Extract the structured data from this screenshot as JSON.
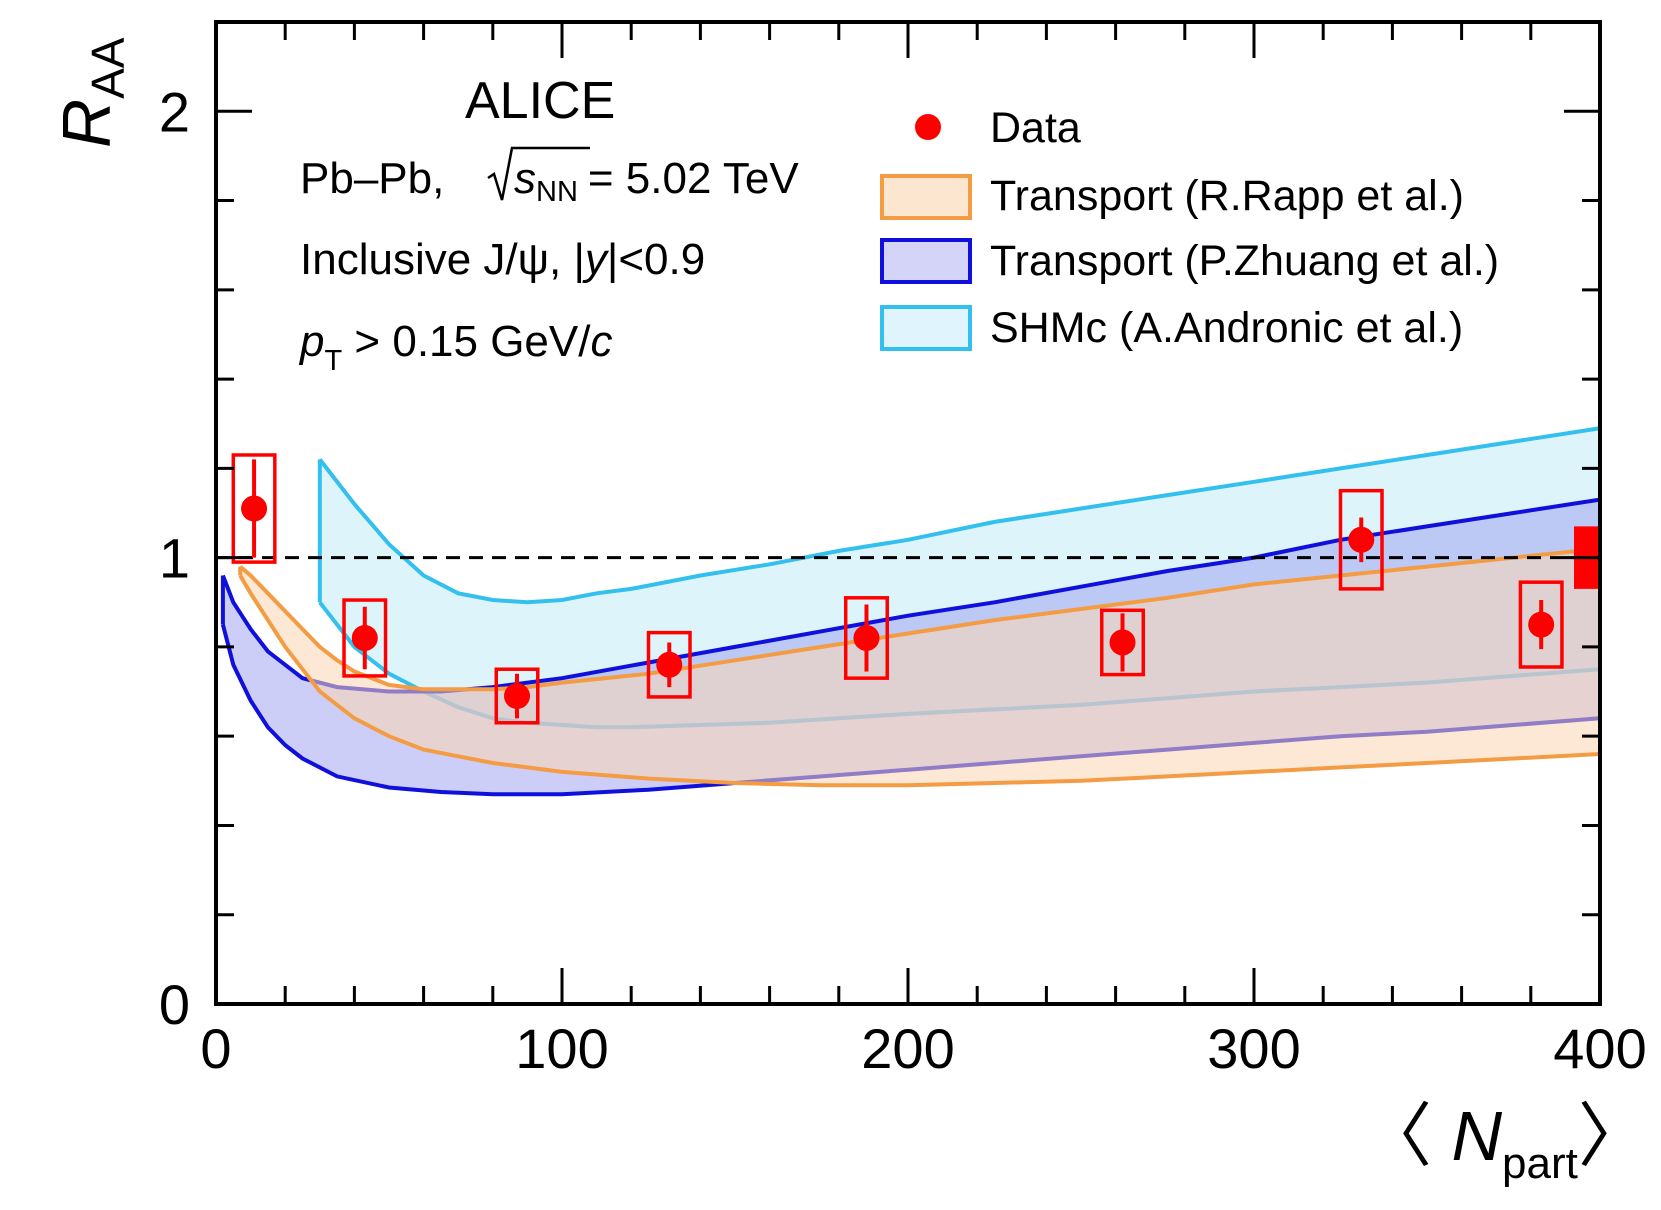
{
  "chart_data": {
    "type": "scatter",
    "experiment": "ALICE",
    "system": "Pb–Pb,",
    "energy_sqrt": "s",
    "energy_sub": "NN",
    "energy_value": "= 5.02 TeV",
    "selection_1": "Inclusive J/ψ, |",
    "selection_1_var": "y",
    "selection_1_end": "|<0.9",
    "pt_var": "p",
    "pt_sub": "T",
    "pt_cut": " > 0.15 GeV/",
    "pt_unit": "c",
    "xlabel_open": "〈",
    "xlabel_var": "N",
    "xlabel_sub": "part",
    "xlabel_close": "〉",
    "ylabel_var": "R",
    "ylabel_sub": "AA",
    "xlim": [
      0,
      400
    ],
    "ylim": [
      0,
      2.2
    ],
    "x_ticks": [
      "0",
      "100",
      "200",
      "300",
      "400"
    ],
    "y_ticks": [
      "0",
      "1",
      "2"
    ],
    "reference_line": 1.0,
    "legend": {
      "placement": "top-right",
      "entries": [
        {
          "key": "data",
          "label": "Data"
        },
        {
          "key": "rapp",
          "label": "Transport (R.Rapp et al.)"
        },
        {
          "key": "zhuang",
          "label": "Transport (P.Zhuang et al.)"
        },
        {
          "key": "shmc",
          "label": "SHMc (A.Andronic et al.)"
        }
      ]
    },
    "data_points": [
      {
        "x": 11,
        "y": 1.11,
        "stat": 0.11,
        "sys_half_width": 6,
        "sys": 0.12
      },
      {
        "x": 43,
        "y": 0.82,
        "stat": 0.07,
        "sys_half_width": 6,
        "sys": 0.085
      },
      {
        "x": 87,
        "y": 0.69,
        "stat": 0.05,
        "sys_half_width": 6,
        "sys": 0.06
      },
      {
        "x": 131,
        "y": 0.76,
        "stat": 0.05,
        "sys_half_width": 6,
        "sys": 0.072
      },
      {
        "x": 188,
        "y": 0.82,
        "stat": 0.075,
        "sys_half_width": 6,
        "sys": 0.09
      },
      {
        "x": 262,
        "y": 0.81,
        "stat": 0.065,
        "sys_half_width": 6,
        "sys": 0.072
      },
      {
        "x": 331,
        "y": 1.04,
        "stat": 0.05,
        "sys_half_width": 6,
        "sys": 0.11
      },
      {
        "x": 383,
        "y": 0.85,
        "stat": 0.055,
        "sys_half_width": 6,
        "sys": 0.095
      }
    ],
    "global_uncertainty": {
      "y": 1.0,
      "half_height": 0.07
    },
    "bands": [
      {
        "key": "shmc",
        "fill": "#cceef9",
        "stroke": "#33c0ee",
        "opacity": 0.65,
        "x": [
          30,
          40,
          50,
          60,
          70,
          80,
          90,
          100,
          110,
          120,
          140,
          160,
          180,
          200,
          225,
          250,
          275,
          300,
          325,
          350,
          375,
          400
        ],
        "upper": [
          1.22,
          1.12,
          1.03,
          0.96,
          0.92,
          0.905,
          0.9,
          0.905,
          0.92,
          0.93,
          0.96,
          0.985,
          1.015,
          1.04,
          1.08,
          1.11,
          1.14,
          1.17,
          1.2,
          1.23,
          1.26,
          1.29
        ],
        "lower": [
          0.9,
          0.8,
          0.74,
          0.7,
          0.665,
          0.64,
          0.63,
          0.625,
          0.62,
          0.62,
          0.625,
          0.63,
          0.64,
          0.65,
          0.66,
          0.67,
          0.685,
          0.7,
          0.71,
          0.72,
          0.735,
          0.75
        ]
      },
      {
        "key": "zhuang",
        "fill": "#9a9ef0",
        "stroke": "#1010dd",
        "opacity": 0.5,
        "x": [
          2,
          5,
          10,
          15,
          20,
          25,
          35,
          50,
          65,
          80,
          100,
          125,
          150,
          175,
          200,
          225,
          250,
          275,
          300,
          325,
          350,
          375,
          400
        ],
        "upper": [
          0.96,
          0.9,
          0.84,
          0.79,
          0.76,
          0.73,
          0.71,
          0.7,
          0.7,
          0.71,
          0.73,
          0.765,
          0.8,
          0.835,
          0.87,
          0.9,
          0.935,
          0.97,
          1.0,
          1.04,
          1.07,
          1.1,
          1.13
        ],
        "lower": [
          0.85,
          0.76,
          0.68,
          0.62,
          0.58,
          0.55,
          0.51,
          0.485,
          0.475,
          0.47,
          0.47,
          0.48,
          0.495,
          0.51,
          0.525,
          0.54,
          0.555,
          0.57,
          0.585,
          0.6,
          0.61,
          0.625,
          0.64
        ]
      },
      {
        "key": "rapp",
        "fill": "#fbd6b2",
        "stroke": "#f49c44",
        "opacity": 0.55,
        "x": [
          7,
          10,
          15,
          20,
          25,
          30,
          35,
          40,
          50,
          60,
          70,
          80,
          90,
          100,
          125,
          150,
          175,
          200,
          225,
          250,
          275,
          300,
          325,
          350,
          375,
          400
        ],
        "upper": [
          0.98,
          0.96,
          0.92,
          0.88,
          0.84,
          0.8,
          0.77,
          0.745,
          0.715,
          0.705,
          0.705,
          0.705,
          0.71,
          0.72,
          0.74,
          0.77,
          0.8,
          0.83,
          0.86,
          0.885,
          0.91,
          0.94,
          0.96,
          0.98,
          1.0,
          1.02
        ],
        "lower": [
          0.96,
          0.92,
          0.86,
          0.8,
          0.75,
          0.7,
          0.67,
          0.64,
          0.6,
          0.57,
          0.555,
          0.54,
          0.53,
          0.52,
          0.505,
          0.495,
          0.49,
          0.49,
          0.495,
          0.5,
          0.51,
          0.52,
          0.53,
          0.54,
          0.55,
          0.56
        ]
      }
    ]
  }
}
